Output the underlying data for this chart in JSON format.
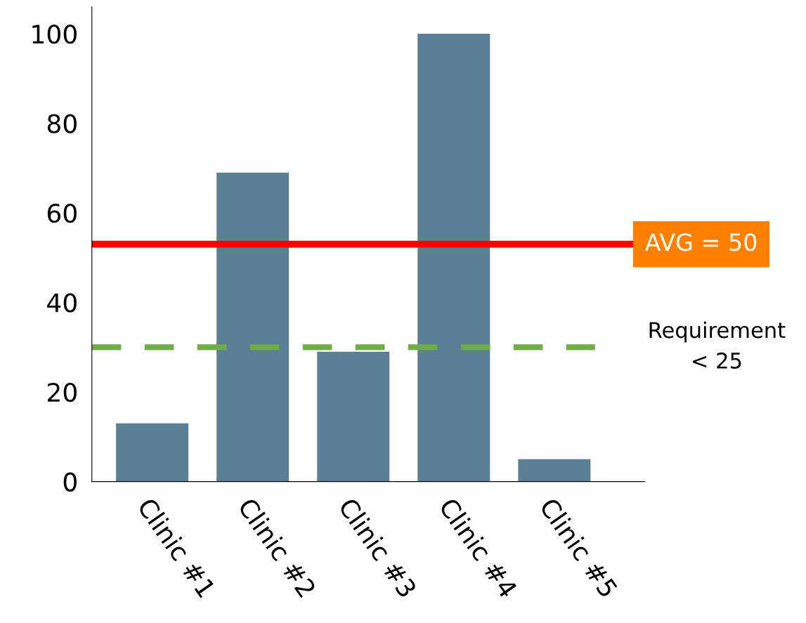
{
  "chart_data": {
    "type": "bar",
    "categories": [
      "Clinic #1",
      "Clinic #2",
      "Clinic #3",
      "Clinic #4",
      "Clinic #5"
    ],
    "values": [
      13,
      69,
      29,
      100,
      5
    ],
    "color": "#5b7f95",
    "ylim": [
      0,
      106
    ],
    "yticks": [
      0,
      20,
      40,
      60,
      80,
      100
    ],
    "ref_lines": [
      {
        "axis": "y",
        "value": 53,
        "color": "#ff0000",
        "line_style": "solid"
      },
      {
        "axis": "y",
        "value": 30,
        "label": "Requirement\n< 25",
        "color": "#70ad47",
        "line_style": "dashed"
      }
    ],
    "annotations": [
      "AVG = 50"
    ],
    "grid": false,
    "legend": false
  }
}
